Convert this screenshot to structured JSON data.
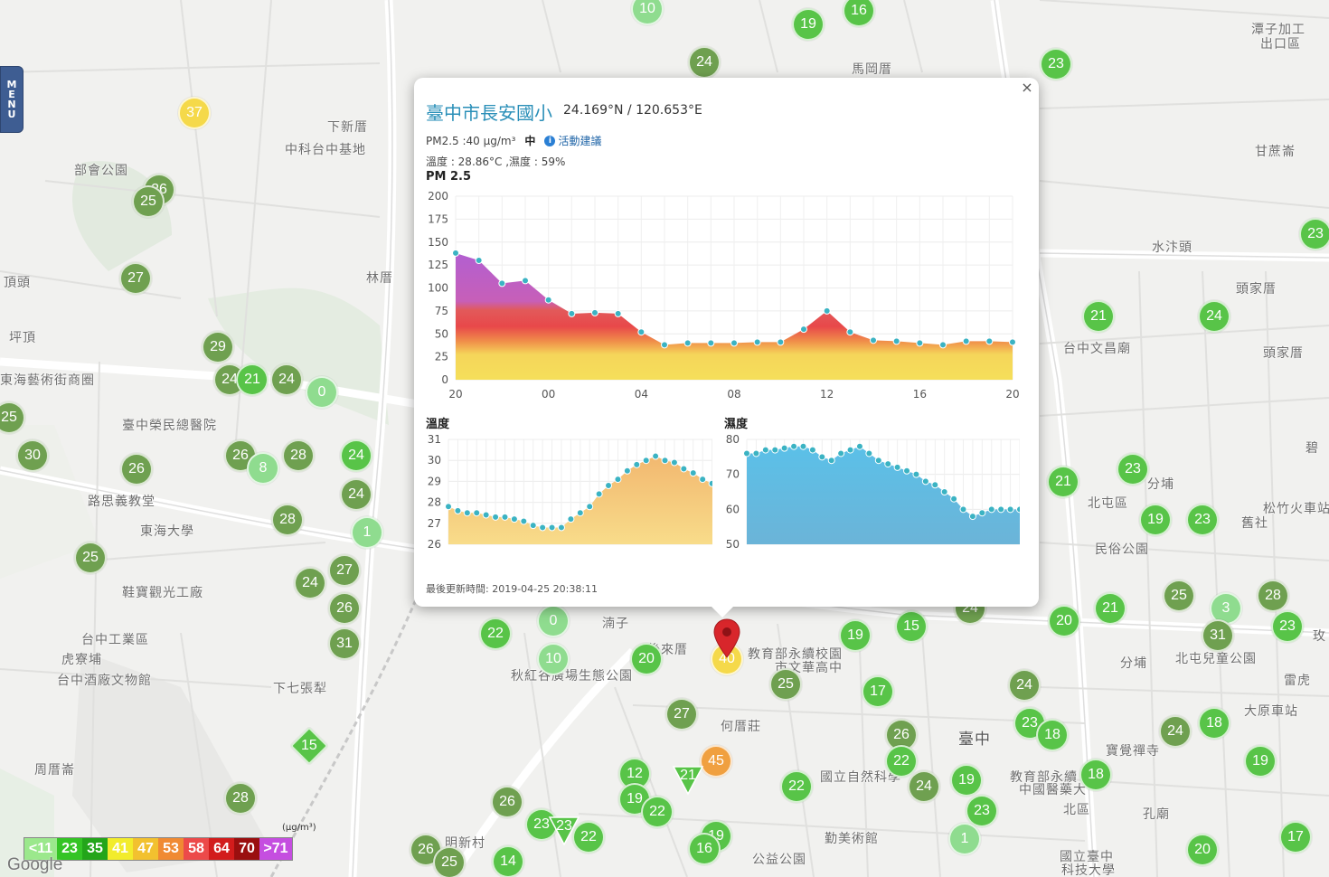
{
  "menu": {
    "letters": [
      "M",
      "E",
      "N",
      "U"
    ]
  },
  "map": {
    "places": [
      {
        "text": "下新厝",
        "x": 362,
        "y": 130,
        "big": false
      },
      {
        "text": "中科台中基地",
        "x": 315,
        "y": 155,
        "big": false
      },
      {
        "text": "部會公園",
        "x": 82,
        "y": 178,
        "big": false
      },
      {
        "text": "林厝",
        "x": 405,
        "y": 297,
        "big": false
      },
      {
        "text": "坪頂",
        "x": 10,
        "y": 363,
        "big": false
      },
      {
        "text": "頂頭",
        "x": 4,
        "y": 302,
        "big": false
      },
      {
        "text": "東海藝術街商圈",
        "x": 0,
        "y": 410,
        "big": false
      },
      {
        "text": "臺中榮民總醫院",
        "x": 135,
        "y": 460,
        "big": false
      },
      {
        "text": "路思義教堂",
        "x": 97,
        "y": 544,
        "big": false
      },
      {
        "text": "東海大學",
        "x": 155,
        "y": 577,
        "big": false
      },
      {
        "text": "鞋寶觀光工廠",
        "x": 135,
        "y": 645,
        "big": false
      },
      {
        "text": "台中工業區",
        "x": 90,
        "y": 697,
        "big": false
      },
      {
        "text": "虎寮埔",
        "x": 68,
        "y": 719,
        "big": false
      },
      {
        "text": "台中酒廠文物館",
        "x": 63,
        "y": 742,
        "big": false
      },
      {
        "text": "下七張犁",
        "x": 302,
        "y": 751,
        "big": false
      },
      {
        "text": "周厝崙",
        "x": 38,
        "y": 841,
        "big": false
      },
      {
        "text": "明新村",
        "x": 492,
        "y": 922,
        "big": false
      },
      {
        "text": "湳子",
        "x": 666,
        "y": 679,
        "big": false
      },
      {
        "text": "後來厝",
        "x": 716,
        "y": 708,
        "big": false
      },
      {
        "text": "秋紅谷廣場生態公園",
        "x": 565,
        "y": 737,
        "big": false
      },
      {
        "text": "何厝莊",
        "x": 797,
        "y": 793,
        "big": false
      },
      {
        "text": "教育部永續校園",
        "x": 827,
        "y": 713,
        "big": false
      },
      {
        "text": "市文華高中",
        "x": 857,
        "y": 728,
        "big": false
      },
      {
        "text": "國立自然科學",
        "x": 907,
        "y": 849,
        "big": false
      },
      {
        "text": "勤美術館",
        "x": 912,
        "y": 917,
        "big": false
      },
      {
        "text": "公益公園",
        "x": 832,
        "y": 940,
        "big": false
      },
      {
        "text": "臺中",
        "x": 1060,
        "y": 803,
        "big": true
      },
      {
        "text": "北區",
        "x": 1176,
        "y": 885,
        "big": false
      },
      {
        "text": "教育部永續",
        "x": 1117,
        "y": 849,
        "big": false
      },
      {
        "text": "中國醫藥大",
        "x": 1127,
        "y": 863,
        "big": false
      },
      {
        "text": "寶覺禪寺",
        "x": 1223,
        "y": 820,
        "big": false
      },
      {
        "text": "北屯區",
        "x": 1203,
        "y": 546,
        "big": false
      },
      {
        "text": "民俗公園",
        "x": 1211,
        "y": 597,
        "big": false
      },
      {
        "text": "分埔",
        "x": 1269,
        "y": 525,
        "big": false
      },
      {
        "text": "舊社",
        "x": 1373,
        "y": 568,
        "big": false
      },
      {
        "text": "分埔",
        "x": 1239,
        "y": 723,
        "big": false
      },
      {
        "text": "北屯兒童公園",
        "x": 1300,
        "y": 718,
        "big": false
      },
      {
        "text": "大原車站",
        "x": 1376,
        "y": 776,
        "big": false
      },
      {
        "text": "雷虎",
        "x": 1420,
        "y": 742,
        "big": false
      },
      {
        "text": "頭家厝",
        "x": 1367,
        "y": 309,
        "big": false
      },
      {
        "text": "頭家厝",
        "x": 1397,
        "y": 380,
        "big": false
      },
      {
        "text": "水汴頭",
        "x": 1274,
        "y": 263,
        "big": false
      },
      {
        "text": "甘蔗崙",
        "x": 1388,
        "y": 157,
        "big": false
      },
      {
        "text": "潭子加工",
        "x": 1384,
        "y": 22,
        "big": false
      },
      {
        "text": "出口區",
        "x": 1394,
        "y": 38,
        "big": false
      },
      {
        "text": "馬岡厝",
        "x": 942,
        "y": 66,
        "big": false
      },
      {
        "text": "台中文昌廟",
        "x": 1176,
        "y": 375,
        "big": false
      },
      {
        "text": "孔廟",
        "x": 1264,
        "y": 890,
        "big": false
      },
      {
        "text": "國立臺中",
        "x": 1172,
        "y": 937,
        "big": false
      },
      {
        "text": "科技大學",
        "x": 1174,
        "y": 952,
        "big": false
      },
      {
        "text": "松竹火車站",
        "x": 1397,
        "y": 552,
        "big": false
      },
      {
        "text": "碧",
        "x": 1444,
        "y": 485,
        "big": false
      },
      {
        "text": "玫",
        "x": 1452,
        "y": 693,
        "big": false
      }
    ],
    "markers": [
      {
        "v": "10",
        "x": 716,
        "y": 10,
        "c": "#8fdc8f",
        "s": "c"
      },
      {
        "v": "19",
        "x": 894,
        "y": 27,
        "c": "#58c448",
        "s": "c"
      },
      {
        "v": "16",
        "x": 950,
        "y": 12,
        "c": "#58c448",
        "s": "c"
      },
      {
        "v": "24",
        "x": 779,
        "y": 69,
        "c": "#6fa050",
        "s": "c"
      },
      {
        "v": "23",
        "x": 1168,
        "y": 71,
        "c": "#58c448",
        "s": "c"
      },
      {
        "v": "37",
        "x": 215,
        "y": 125,
        "c": "#f5d94a",
        "s": "c"
      },
      {
        "v": "26",
        "x": 176,
        "y": 210,
        "c": "#6fa050",
        "s": "c"
      },
      {
        "v": "25",
        "x": 164,
        "y": 223,
        "c": "#6fa050",
        "s": "c"
      },
      {
        "v": "27",
        "x": 150,
        "y": 308,
        "c": "#6fa050",
        "s": "c"
      },
      {
        "v": "29",
        "x": 241,
        "y": 384,
        "c": "#6fa050",
        "s": "c"
      },
      {
        "v": "24",
        "x": 254,
        "y": 420,
        "c": "#6fa050",
        "s": "c"
      },
      {
        "v": "21",
        "x": 279,
        "y": 420,
        "c": "#58c448",
        "s": "c"
      },
      {
        "v": "24",
        "x": 317,
        "y": 420,
        "c": "#6fa050",
        "s": "c"
      },
      {
        "v": "0",
        "x": 356,
        "y": 434,
        "c": "#8fdc8f",
        "s": "c"
      },
      {
        "v": "25",
        "x": 10,
        "y": 462,
        "c": "#6fa050",
        "s": "c"
      },
      {
        "v": "30",
        "x": 36,
        "y": 504,
        "c": "#6fa050",
        "s": "c"
      },
      {
        "v": "26",
        "x": 151,
        "y": 519,
        "c": "#6fa050",
        "s": "c"
      },
      {
        "v": "26",
        "x": 266,
        "y": 504,
        "c": "#6fa050",
        "s": "c"
      },
      {
        "v": "8",
        "x": 291,
        "y": 518,
        "c": "#8fdc8f",
        "s": "c"
      },
      {
        "v": "28",
        "x": 330,
        "y": 504,
        "c": "#6fa050",
        "s": "c"
      },
      {
        "v": "24",
        "x": 394,
        "y": 504,
        "c": "#58c448",
        "s": "c"
      },
      {
        "v": "24",
        "x": 394,
        "y": 547,
        "c": "#6fa050",
        "s": "c"
      },
      {
        "v": "28",
        "x": 318,
        "y": 575,
        "c": "#6fa050",
        "s": "c"
      },
      {
        "v": "1",
        "x": 406,
        "y": 589,
        "c": "#8fdc8f",
        "s": "c"
      },
      {
        "v": "25",
        "x": 100,
        "y": 617,
        "c": "#6fa050",
        "s": "c"
      },
      {
        "v": "27",
        "x": 381,
        "y": 631,
        "c": "#6fa050",
        "s": "c"
      },
      {
        "v": "24",
        "x": 343,
        "y": 645,
        "c": "#6fa050",
        "s": "c"
      },
      {
        "v": "26",
        "x": 381,
        "y": 673,
        "c": "#6fa050",
        "s": "c"
      },
      {
        "v": "31",
        "x": 381,
        "y": 712,
        "c": "#6fa050",
        "s": "c"
      },
      {
        "v": "15",
        "x": 342,
        "y": 825,
        "c": "#58c448",
        "s": "d"
      },
      {
        "v": "28",
        "x": 266,
        "y": 883,
        "c": "#6fa050",
        "s": "c"
      },
      {
        "v": "26",
        "x": 471,
        "y": 940,
        "c": "#6fa050",
        "s": "c"
      },
      {
        "v": "25",
        "x": 497,
        "y": 954,
        "c": "#6fa050",
        "s": "c"
      },
      {
        "v": "14",
        "x": 562,
        "y": 953,
        "c": "#58c448",
        "s": "c"
      },
      {
        "v": "22",
        "x": 548,
        "y": 701,
        "c": "#58c448",
        "s": "c"
      },
      {
        "v": "0",
        "x": 612,
        "y": 687,
        "c": "#8fdc8f",
        "s": "c"
      },
      {
        "v": "10",
        "x": 612,
        "y": 729,
        "c": "#8fdc8f",
        "s": "c"
      },
      {
        "v": "20",
        "x": 715,
        "y": 729,
        "c": "#58c448",
        "s": "c"
      },
      {
        "v": "40",
        "x": 804,
        "y": 729,
        "c": "#f5d94a",
        "s": "c"
      },
      {
        "v": "27",
        "x": 754,
        "y": 790,
        "c": "#6fa050",
        "s": "c"
      },
      {
        "v": "45",
        "x": 792,
        "y": 842,
        "c": "#f0a040",
        "s": "c"
      },
      {
        "v": "21",
        "x": 761,
        "y": 862,
        "c": "#58c448",
        "s": "t"
      },
      {
        "v": "12",
        "x": 702,
        "y": 856,
        "c": "#58c448",
        "s": "c"
      },
      {
        "v": "19",
        "x": 702,
        "y": 884,
        "c": "#58c448",
        "s": "c"
      },
      {
        "v": "22",
        "x": 727,
        "y": 898,
        "c": "#58c448",
        "s": "c"
      },
      {
        "v": "26",
        "x": 561,
        "y": 887,
        "c": "#6fa050",
        "s": "c"
      },
      {
        "v": "23",
        "x": 599,
        "y": 912,
        "c": "#58c448",
        "s": "c"
      },
      {
        "v": "23",
        "x": 624,
        "y": 918,
        "c": "#58c448",
        "s": "t"
      },
      {
        "v": "22",
        "x": 651,
        "y": 926,
        "c": "#58c448",
        "s": "c"
      },
      {
        "v": "19",
        "x": 792,
        "y": 925,
        "c": "#58c448",
        "s": "c"
      },
      {
        "v": "16",
        "x": 779,
        "y": 939,
        "c": "#58c448",
        "s": "c"
      },
      {
        "v": "25",
        "x": 869,
        "y": 757,
        "c": "#6fa050",
        "s": "c"
      },
      {
        "v": "22",
        "x": 881,
        "y": 870,
        "c": "#58c448",
        "s": "c"
      },
      {
        "v": "19",
        "x": 946,
        "y": 703,
        "c": "#58c448",
        "s": "c"
      },
      {
        "v": "15",
        "x": 1008,
        "y": 693,
        "c": "#58c448",
        "s": "c"
      },
      {
        "v": "17",
        "x": 971,
        "y": 765,
        "c": "#58c448",
        "s": "c"
      },
      {
        "v": "26",
        "x": 997,
        "y": 813,
        "c": "#6fa050",
        "s": "c"
      },
      {
        "v": "22",
        "x": 997,
        "y": 842,
        "c": "#58c448",
        "s": "c"
      },
      {
        "v": "24",
        "x": 1022,
        "y": 870,
        "c": "#6fa050",
        "s": "c"
      },
      {
        "v": "19",
        "x": 1069,
        "y": 863,
        "c": "#58c448",
        "s": "c"
      },
      {
        "v": "23",
        "x": 1086,
        "y": 897,
        "c": "#58c448",
        "s": "c"
      },
      {
        "v": "1",
        "x": 1067,
        "y": 928,
        "c": "#8fdc8f",
        "s": "c"
      },
      {
        "v": "24",
        "x": 1133,
        "y": 758,
        "c": "#6fa050",
        "s": "c"
      },
      {
        "v": "23",
        "x": 1139,
        "y": 800,
        "c": "#58c448",
        "s": "c"
      },
      {
        "v": "18",
        "x": 1164,
        "y": 813,
        "c": "#58c448",
        "s": "c"
      },
      {
        "v": "18",
        "x": 1212,
        "y": 857,
        "c": "#58c448",
        "s": "c"
      },
      {
        "v": "20",
        "x": 1177,
        "y": 687,
        "c": "#58c448",
        "s": "c"
      },
      {
        "v": "21",
        "x": 1228,
        "y": 673,
        "c": "#58c448",
        "s": "c"
      },
      {
        "v": "25",
        "x": 1304,
        "y": 659,
        "c": "#6fa050",
        "s": "c"
      },
      {
        "v": "3",
        "x": 1356,
        "y": 673,
        "c": "#8fdc8f",
        "s": "c"
      },
      {
        "v": "28",
        "x": 1408,
        "y": 659,
        "c": "#6fa050",
        "s": "c"
      },
      {
        "v": "31",
        "x": 1347,
        "y": 703,
        "c": "#6fa050",
        "s": "c"
      },
      {
        "v": "23",
        "x": 1424,
        "y": 693,
        "c": "#58c448",
        "s": "c"
      },
      {
        "v": "24",
        "x": 1300,
        "y": 809,
        "c": "#6fa050",
        "s": "c"
      },
      {
        "v": "18",
        "x": 1343,
        "y": 800,
        "c": "#58c448",
        "s": "c"
      },
      {
        "v": "19",
        "x": 1394,
        "y": 842,
        "c": "#58c448",
        "s": "c"
      },
      {
        "v": "17",
        "x": 1433,
        "y": 926,
        "c": "#58c448",
        "s": "c"
      },
      {
        "v": "20",
        "x": 1330,
        "y": 940,
        "c": "#58c448",
        "s": "c"
      },
      {
        "v": "21",
        "x": 1176,
        "y": 533,
        "c": "#58c448",
        "s": "c"
      },
      {
        "v": "23",
        "x": 1253,
        "y": 519,
        "c": "#58c448",
        "s": "c"
      },
      {
        "v": "19",
        "x": 1278,
        "y": 575,
        "c": "#58c448",
        "s": "c"
      },
      {
        "v": "23",
        "x": 1330,
        "y": 575,
        "c": "#58c448",
        "s": "c"
      },
      {
        "v": "21",
        "x": 1215,
        "y": 350,
        "c": "#58c448",
        "s": "c"
      },
      {
        "v": "24",
        "x": 1343,
        "y": 350,
        "c": "#58c448",
        "s": "c"
      },
      {
        "v": "23",
        "x": 1455,
        "y": 259,
        "c": "#58c448",
        "s": "c"
      },
      {
        "v": "24",
        "x": 1073,
        "y": 673,
        "c": "#6fa050",
        "s": "c"
      }
    ]
  },
  "legend": {
    "unit": "(μg/m³)",
    "items": [
      {
        "label": "<11",
        "color": "#9be88c"
      },
      {
        "label": "23",
        "color": "#34c425"
      },
      {
        "label": "35",
        "color": "#23a51a"
      },
      {
        "label": "41",
        "color": "#f2ec2c"
      },
      {
        "label": "47",
        "color": "#f2c12f"
      },
      {
        "label": "53",
        "color": "#f08a33"
      },
      {
        "label": "58",
        "color": "#ec4a4a"
      },
      {
        "label": "64",
        "color": "#d21c1c"
      },
      {
        "label": "70",
        "color": "#9a0f0f"
      },
      {
        "label": ">71",
        "color": "#c54ee0"
      }
    ]
  },
  "google_logo": "Google",
  "popup": {
    "close": "×",
    "station": "臺中市長安國小",
    "coords": "24.169°N / 120.653°E",
    "pm_text": "PM2.5 :40 μg/m³",
    "pm_level": "中",
    "info_icon": "i",
    "advice_link": "活動建議",
    "env_text": "溫度 : 28.86°C ,濕度 : 59%",
    "pm_chart_title": "PM 2.5",
    "temp_chart_title": "溫度",
    "hum_chart_title": "濕度",
    "update_time": "最後更新時間: 2019-04-25 20:38:11"
  },
  "chart_data": [
    {
      "type": "area",
      "title": "PM 2.5",
      "x_ticks": [
        "20",
        "00",
        "04",
        "08",
        "12",
        "16",
        "20"
      ],
      "ylim": [
        0,
        200
      ],
      "y_ticks": [
        0,
        25,
        50,
        75,
        100,
        125,
        150,
        175,
        200
      ],
      "grid": true,
      "series": [
        {
          "values": [
            138,
            130,
            105,
            108,
            87,
            72,
            73,
            72,
            52,
            38,
            40,
            40,
            40,
            41,
            41,
            55,
            75,
            52,
            43,
            42,
            40,
            38,
            42,
            42,
            41
          ]
        }
      ]
    },
    {
      "type": "area",
      "title": "溫度",
      "ylim": [
        26,
        31
      ],
      "y_ticks": [
        26,
        27,
        28,
        29,
        30,
        31
      ],
      "grid": true,
      "series": [
        {
          "values": [
            27.8,
            27.6,
            27.5,
            27.5,
            27.4,
            27.3,
            27.3,
            27.2,
            27.1,
            26.9,
            26.8,
            26.8,
            26.8,
            27.2,
            27.5,
            27.8,
            28.4,
            28.8,
            29.1,
            29.5,
            29.8,
            30.0,
            30.2,
            30.0,
            29.9,
            29.6,
            29.4,
            29.1,
            28.9,
            28.8
          ]
        }
      ]
    },
    {
      "type": "area",
      "title": "濕度",
      "ylim": [
        50,
        80
      ],
      "y_ticks": [
        50,
        60,
        70,
        80
      ],
      "grid": true,
      "series": [
        {
          "values": [
            76,
            76,
            77,
            77,
            77.5,
            78,
            78,
            77,
            75,
            74,
            76,
            77,
            78,
            76,
            74,
            73,
            72,
            71,
            70,
            68,
            67,
            65,
            63,
            60,
            58,
            59,
            60,
            60,
            60,
            60
          ]
        }
      ]
    }
  ]
}
